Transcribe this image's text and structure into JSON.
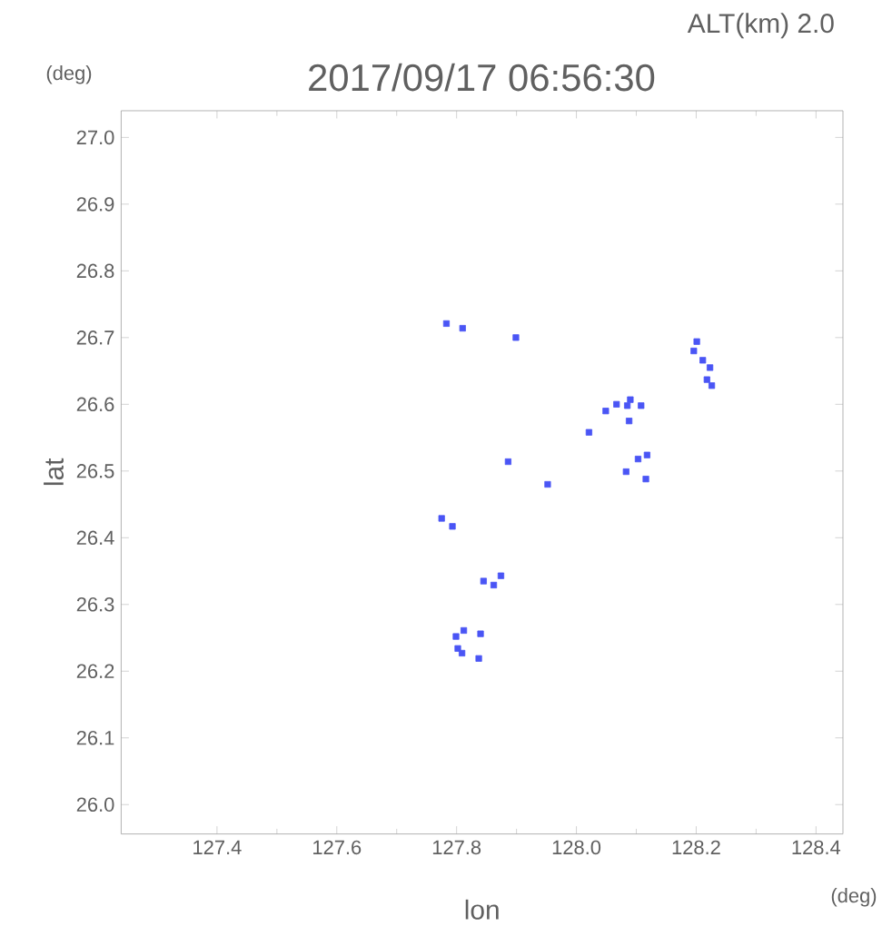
{
  "chart_data": {
    "type": "scatter",
    "title": "2017/09/17 06:56:30",
    "xlabel": "lon",
    "ylabel": "lat",
    "annotations": [
      "ALT(km) 2.0",
      "(deg)",
      "(deg)"
    ],
    "xlim": [
      127.24,
      128.445
    ],
    "ylim": [
      25.956,
      27.04
    ],
    "xticks": [
      127.4,
      127.6,
      127.8,
      {
        "value": 128,
        "label": "128.0"
      },
      128.2,
      128.4
    ],
    "yticks": [
      {
        "value": 26,
        "label": "26.0"
      },
      26.1,
      26.2,
      26.3,
      26.4,
      26.5,
      26.6,
      26.7,
      26.8,
      26.9,
      {
        "value": 27,
        "label": "27.0"
      }
    ],
    "grid": false,
    "marker": "square",
    "series": [
      {
        "color": "#4a55f5",
        "x": [
          127.783,
          127.81,
          127.899,
          128.201,
          128.196,
          128.211,
          128.223,
          128.218,
          128.226,
          128.09,
          128.067,
          128.085,
          128.108,
          128.049,
          128.088,
          128.021,
          128.118,
          128.103,
          127.886,
          128.083,
          127.952,
          128.116,
          127.775,
          127.793,
          127.845,
          127.862,
          127.874,
          127.812,
          127.799,
          127.84,
          127.802,
          127.809,
          127.837
        ],
        "values": [
          26.721,
          26.714,
          26.7,
          26.694,
          26.68,
          26.666,
          26.655,
          26.637,
          26.628,
          26.607,
          26.6,
          26.598,
          26.598,
          26.59,
          26.575,
          26.558,
          26.524,
          26.518,
          26.514,
          26.499,
          26.48,
          26.488,
          26.429,
          26.417,
          26.335,
          26.329,
          26.343,
          26.261,
          26.252,
          26.256,
          26.234,
          26.227,
          26.219
        ]
      }
    ]
  }
}
